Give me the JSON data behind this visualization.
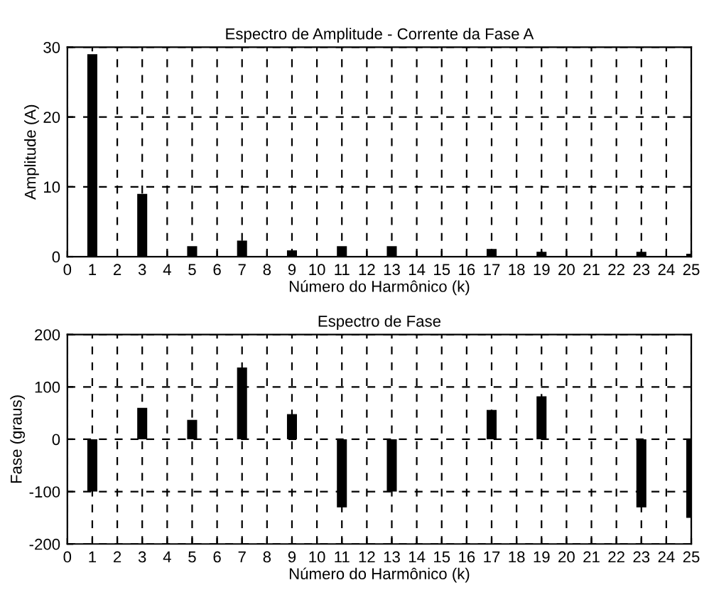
{
  "chart_data": [
    {
      "type": "bar",
      "title": "Espectro de Amplitude - Corrente da Fase A",
      "xlabel": "Número do Harmônico (k)",
      "ylabel": "Amplitude (A)",
      "x": [
        1,
        2,
        3,
        4,
        5,
        6,
        7,
        8,
        9,
        10,
        11,
        12,
        13,
        14,
        15,
        16,
        17,
        18,
        19,
        20,
        21,
        22,
        23,
        24,
        25
      ],
      "series": [
        {
          "color": "#000000",
          "values": [
            29,
            0,
            9,
            0,
            1.5,
            0,
            2.3,
            0,
            0.9,
            0,
            1.5,
            0,
            1.5,
            0,
            0,
            0,
            1.1,
            0,
            0.7,
            0,
            0,
            0,
            0.7,
            0,
            0.4
          ]
        }
      ],
      "xlim": [
        0,
        25
      ],
      "xticks": [
        0,
        1,
        2,
        3,
        4,
        5,
        6,
        7,
        8,
        9,
        10,
        11,
        12,
        13,
        14,
        15,
        16,
        17,
        18,
        19,
        20,
        21,
        22,
        23,
        24,
        25
      ],
      "ylim": [
        0,
        30
      ],
      "yticks": [
        0,
        10,
        20,
        30
      ],
      "grid": true
    },
    {
      "type": "bar",
      "title": "Espectro de Fase",
      "xlabel": "Número do Harmônico (k)",
      "ylabel": "Fase (graus)",
      "x": [
        1,
        2,
        3,
        4,
        5,
        6,
        7,
        8,
        9,
        10,
        11,
        12,
        13,
        14,
        15,
        16,
        17,
        18,
        19,
        20,
        21,
        22,
        23,
        24,
        25
      ],
      "series": [
        {
          "color": "#000000",
          "values": [
            -100,
            0,
            60,
            0,
            37,
            0,
            137,
            0,
            48,
            0,
            -130,
            0,
            -100,
            0,
            0,
            0,
            56,
            0,
            82,
            0,
            0,
            0,
            -130,
            0,
            -150
          ]
        }
      ],
      "xlim": [
        0,
        25
      ],
      "xticks": [
        0,
        1,
        2,
        3,
        4,
        5,
        6,
        7,
        8,
        9,
        10,
        11,
        12,
        13,
        14,
        15,
        16,
        17,
        18,
        19,
        20,
        21,
        22,
        23,
        24,
        25
      ],
      "ylim": [
        -200,
        200
      ],
      "yticks": [
        -200,
        -100,
        0,
        100,
        200
      ],
      "grid": true
    }
  ]
}
